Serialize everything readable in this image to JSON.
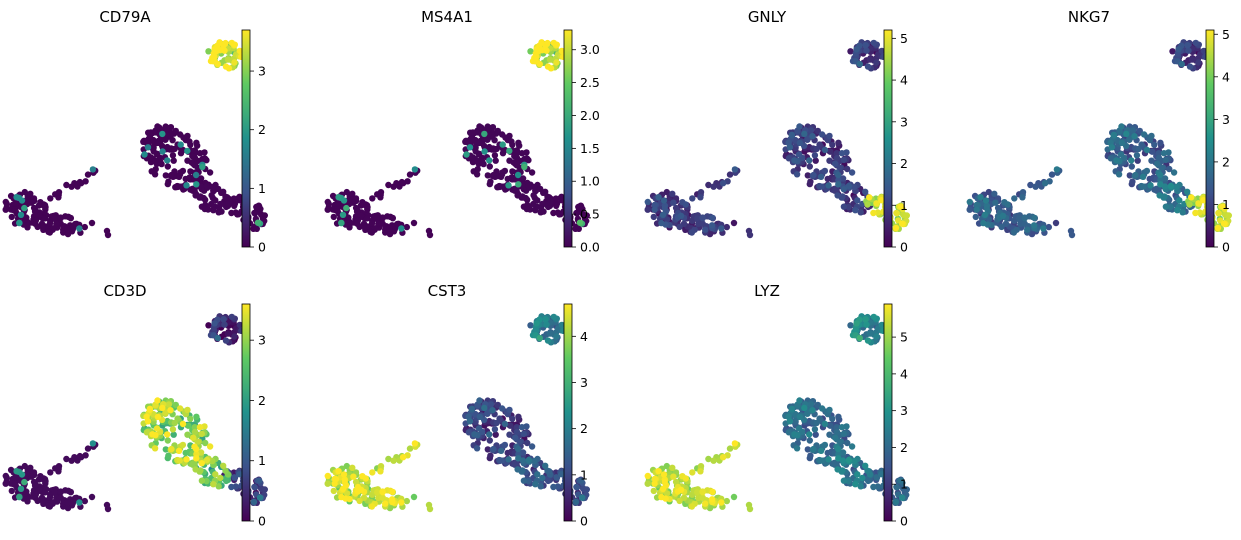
{
  "chart_data": {
    "type": "scatter",
    "layout": {
      "rows": 2,
      "cols": 4
    },
    "x_axis": {
      "visible": false
    },
    "y_axis": {
      "visible": false
    },
    "colormap": "viridis",
    "colormap_stops": [
      "#440154",
      "#3b528b",
      "#21918c",
      "#5ec962",
      "#fde725"
    ],
    "panels": [
      {
        "title": "CD79A",
        "vmax": 3.7,
        "ticks": [
          "0",
          "1",
          "2",
          "3"
        ],
        "tick_values": [
          0,
          1,
          2,
          3
        ],
        "expression": {
          "clusterBcell": 3.5,
          "clusterT": 0.05,
          "clusterT_right": 0.1,
          "clusterMono": 0.05,
          "clusterNK": 0.05
        }
      },
      {
        "title": "MS4A1",
        "vmax": 3.3,
        "ticks": [
          "0.0",
          "0.5",
          "1.0",
          "1.5",
          "2.0",
          "2.5",
          "3.0"
        ],
        "tick_values": [
          0,
          0.5,
          1,
          1.5,
          2,
          2.5,
          3
        ],
        "expression": {
          "clusterBcell": 3.1,
          "clusterT": 0.1,
          "clusterT_right": 0.1,
          "clusterMono": 0.05,
          "clusterNK": 0.05
        }
      },
      {
        "title": "GNLY",
        "vmax": 5.2,
        "ticks": [
          "0",
          "1",
          "2",
          "3",
          "4",
          "5"
        ],
        "tick_values": [
          0,
          1,
          2,
          3,
          4,
          5
        ],
        "expression": {
          "clusterBcell": 0.8,
          "clusterT": 0.9,
          "clusterT_right": 0.8,
          "clusterMono": 0.8,
          "clusterNK": 4.7
        }
      },
      {
        "title": "NKG7",
        "vmax": 5.1,
        "ticks": [
          "0",
          "1",
          "2",
          "3",
          "4",
          "5"
        ],
        "tick_values": [
          0,
          1,
          2,
          3,
          4,
          5
        ],
        "expression": {
          "clusterBcell": 0.8,
          "clusterT": 1.5,
          "clusterT_right": 1.8,
          "clusterMono": 1.4,
          "clusterNK": 4.6
        }
      },
      {
        "title": "CD3D",
        "vmax": 3.6,
        "ticks": [
          "0",
          "1",
          "2",
          "3"
        ],
        "tick_values": [
          0,
          1,
          2,
          3
        ],
        "expression": {
          "clusterBcell": 0.3,
          "clusterT": 3.0,
          "clusterT_right": 2.6,
          "clusterMono": 0.2,
          "clusterNK": 0.6
        }
      },
      {
        "title": "CST3",
        "vmax": 4.7,
        "ticks": [
          "0",
          "1",
          "2",
          "3",
          "4"
        ],
        "tick_values": [
          0,
          1,
          2,
          3,
          4
        ],
        "expression": {
          "clusterBcell": 1.8,
          "clusterT": 0.9,
          "clusterT_right": 1.2,
          "clusterMono": 4.2,
          "clusterNK": 1.0
        }
      },
      {
        "title": "LYZ",
        "vmax": 5.9,
        "ticks": [
          "0",
          "1",
          "2",
          "3",
          "4",
          "5"
        ],
        "tick_values": [
          0,
          1,
          2,
          3,
          4,
          5
        ],
        "expression": {
          "clusterBcell": 2.5,
          "clusterT": 2.0,
          "clusterT_right": 2.2,
          "clusterMono": 5.2,
          "clusterNK": 1.8
        }
      }
    ]
  }
}
